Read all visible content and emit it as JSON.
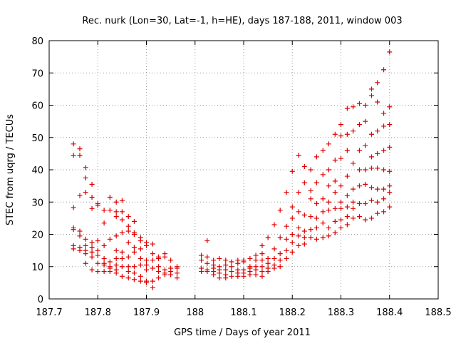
{
  "chart_data": {
    "type": "scatter",
    "title": "Rec. nurk (Lon=30, Lat=-1, h=HE), days 187-188, 2011, window 003",
    "xlabel": "GPS time / Days of year 2011",
    "ylabel": "STEC from uqrg / TECUs",
    "xlim": [
      187.7,
      188.5
    ],
    "ylim": [
      0,
      80
    ],
    "xticks": [
      "187.7",
      "187.8",
      "187.9",
      "188",
      "188.1",
      "188.2",
      "188.3",
      "188.4",
      "188.5"
    ],
    "yticks": [
      "0",
      "10",
      "20",
      "30",
      "40",
      "50",
      "60",
      "70",
      "80"
    ],
    "grid": true,
    "marker": "+",
    "color": "#dd0000",
    "points": [
      [
        187.75,
        48.0
      ],
      [
        187.75,
        44.5
      ],
      [
        187.75,
        28.3
      ],
      [
        187.75,
        22.0
      ],
      [
        187.75,
        21.5
      ],
      [
        187.75,
        16.5
      ],
      [
        187.75,
        15.5
      ],
      [
        187.763,
        46.5
      ],
      [
        187.763,
        44.5
      ],
      [
        187.763,
        32.0
      ],
      [
        187.763,
        21.0
      ],
      [
        187.763,
        19.5
      ],
      [
        187.763,
        16.0
      ],
      [
        187.763,
        15.0
      ],
      [
        187.775,
        40.7
      ],
      [
        187.775,
        37.5
      ],
      [
        187.775,
        33.0
      ],
      [
        187.775,
        18.5
      ],
      [
        187.775,
        16.5
      ],
      [
        187.775,
        15.0
      ],
      [
        187.775,
        14.0
      ],
      [
        187.775,
        11.0
      ],
      [
        187.788,
        35.5
      ],
      [
        187.788,
        31.5
      ],
      [
        187.788,
        28.0
      ],
      [
        187.788,
        17.5
      ],
      [
        187.788,
        16.0
      ],
      [
        187.788,
        14.5
      ],
      [
        187.788,
        13.0
      ],
      [
        187.788,
        9.0
      ],
      [
        187.8,
        29.5
      ],
      [
        187.8,
        29.0
      ],
      [
        187.8,
        18.0
      ],
      [
        187.8,
        15.0
      ],
      [
        187.8,
        13.5
      ],
      [
        187.8,
        11.0
      ],
      [
        187.8,
        8.5
      ],
      [
        187.813,
        27.5
      ],
      [
        187.813,
        23.5
      ],
      [
        187.813,
        16.5
      ],
      [
        187.813,
        12.5
      ],
      [
        187.813,
        11.0
      ],
      [
        187.813,
        10.5
      ],
      [
        187.813,
        8.5
      ],
      [
        187.825,
        31.5
      ],
      [
        187.825,
        27.5
      ],
      [
        187.825,
        18.5
      ],
      [
        187.825,
        11.5
      ],
      [
        187.825,
        10.0
      ],
      [
        187.825,
        9.5
      ],
      [
        187.825,
        8.5
      ],
      [
        187.838,
        30.0
      ],
      [
        187.838,
        27.0
      ],
      [
        187.838,
        25.5
      ],
      [
        187.838,
        19.5
      ],
      [
        187.838,
        15.0
      ],
      [
        187.838,
        12.5
      ],
      [
        187.838,
        10.5
      ],
      [
        187.838,
        9.0
      ],
      [
        187.838,
        8.0
      ],
      [
        187.85,
        30.5
      ],
      [
        187.85,
        27.0
      ],
      [
        187.85,
        24.5
      ],
      [
        187.85,
        20.5
      ],
      [
        187.85,
        14.5
      ],
      [
        187.85,
        12.5
      ],
      [
        187.85,
        10.0
      ],
      [
        187.85,
        7.0
      ],
      [
        187.863,
        25.5
      ],
      [
        187.863,
        22.5
      ],
      [
        187.863,
        21.0
      ],
      [
        187.863,
        17.5
      ],
      [
        187.863,
        13.0
      ],
      [
        187.863,
        10.0
      ],
      [
        187.863,
        8.5
      ],
      [
        187.863,
        6.5
      ],
      [
        187.875,
        24.0
      ],
      [
        187.875,
        20.5
      ],
      [
        187.875,
        20.0
      ],
      [
        187.875,
        16.0
      ],
      [
        187.875,
        14.5
      ],
      [
        187.875,
        10.0
      ],
      [
        187.875,
        8.0
      ],
      [
        187.875,
        6.0
      ],
      [
        187.888,
        19.0
      ],
      [
        187.888,
        18.0
      ],
      [
        187.888,
        15.5
      ],
      [
        187.888,
        12.5
      ],
      [
        187.888,
        10.5
      ],
      [
        187.888,
        7.0
      ],
      [
        187.888,
        5.5
      ],
      [
        187.9,
        17.5
      ],
      [
        187.9,
        16.5
      ],
      [
        187.9,
        12.0
      ],
      [
        187.9,
        10.5
      ],
      [
        187.9,
        9.0
      ],
      [
        187.9,
        5.5
      ],
      [
        187.9,
        5.0
      ],
      [
        187.913,
        17.0
      ],
      [
        187.913,
        14.0
      ],
      [
        187.913,
        12.0
      ],
      [
        187.913,
        9.5
      ],
      [
        187.913,
        5.5
      ],
      [
        187.913,
        3.5
      ],
      [
        187.925,
        13.0
      ],
      [
        187.925,
        12.5
      ],
      [
        187.925,
        10.0
      ],
      [
        187.925,
        8.5
      ],
      [
        187.925,
        6.5
      ],
      [
        187.938,
        14.0
      ],
      [
        187.938,
        13.0
      ],
      [
        187.938,
        9.0
      ],
      [
        187.938,
        8.0
      ],
      [
        187.938,
        7.5
      ],
      [
        187.95,
        12.0
      ],
      [
        187.95,
        9.5
      ],
      [
        187.95,
        8.5
      ],
      [
        187.95,
        7.5
      ],
      [
        187.963,
        10.0
      ],
      [
        187.963,
        9.5
      ],
      [
        187.963,
        8.0
      ],
      [
        187.963,
        6.5
      ],
      [
        188.013,
        13.5
      ],
      [
        188.013,
        12.0
      ],
      [
        188.013,
        9.5
      ],
      [
        188.013,
        8.5
      ],
      [
        188.025,
        18.0
      ],
      [
        188.025,
        13.0
      ],
      [
        188.025,
        11.0
      ],
      [
        188.025,
        9.0
      ],
      [
        188.025,
        8.5
      ],
      [
        188.038,
        12.0
      ],
      [
        188.038,
        10.5
      ],
      [
        188.038,
        9.5
      ],
      [
        188.038,
        8.5
      ],
      [
        188.038,
        7.5
      ],
      [
        188.05,
        12.5
      ],
      [
        188.05,
        10.0
      ],
      [
        188.05,
        9.0
      ],
      [
        188.05,
        8.0
      ],
      [
        188.05,
        6.5
      ],
      [
        188.063,
        12.0
      ],
      [
        188.063,
        10.5
      ],
      [
        188.063,
        9.0
      ],
      [
        188.063,
        7.5
      ],
      [
        188.063,
        6.5
      ],
      [
        188.075,
        11.5
      ],
      [
        188.075,
        10.0
      ],
      [
        188.075,
        8.5
      ],
      [
        188.075,
        7.0
      ],
      [
        188.088,
        12.0
      ],
      [
        188.088,
        11.0
      ],
      [
        188.088,
        9.0
      ],
      [
        188.088,
        8.0
      ],
      [
        188.088,
        7.0
      ],
      [
        188.1,
        12.0
      ],
      [
        188.1,
        11.5
      ],
      [
        188.1,
        9.0
      ],
      [
        188.1,
        8.0
      ],
      [
        188.1,
        7.0
      ],
      [
        188.113,
        12.5
      ],
      [
        188.113,
        10.0
      ],
      [
        188.113,
        9.5
      ],
      [
        188.113,
        8.5
      ],
      [
        188.113,
        7.5
      ],
      [
        188.125,
        13.5
      ],
      [
        188.125,
        12.0
      ],
      [
        188.125,
        10.0
      ],
      [
        188.125,
        9.0
      ],
      [
        188.125,
        7.5
      ],
      [
        188.138,
        16.5
      ],
      [
        188.138,
        14.0
      ],
      [
        188.138,
        12.0
      ],
      [
        188.138,
        10.0
      ],
      [
        188.138,
        8.5
      ],
      [
        188.138,
        7.0
      ],
      [
        188.15,
        19.0
      ],
      [
        188.15,
        12.5
      ],
      [
        188.15,
        11.0
      ],
      [
        188.15,
        9.5
      ],
      [
        188.15,
        8.5
      ],
      [
        188.163,
        23.0
      ],
      [
        188.163,
        15.5
      ],
      [
        188.163,
        12.5
      ],
      [
        188.163,
        10.5
      ],
      [
        188.163,
        9.5
      ],
      [
        188.175,
        27.5
      ],
      [
        188.175,
        19.0
      ],
      [
        188.175,
        14.0
      ],
      [
        188.175,
        12.0
      ],
      [
        188.175,
        10.0
      ],
      [
        188.188,
        33.0
      ],
      [
        188.188,
        22.5
      ],
      [
        188.188,
        18.5
      ],
      [
        188.188,
        15.0
      ],
      [
        188.188,
        12.5
      ],
      [
        188.2,
        39.5
      ],
      [
        188.2,
        28.5
      ],
      [
        188.2,
        25.0
      ],
      [
        188.2,
        20.0
      ],
      [
        188.2,
        17.5
      ],
      [
        188.2,
        14.5
      ],
      [
        188.213,
        44.5
      ],
      [
        188.213,
        33.0
      ],
      [
        188.213,
        27.0
      ],
      [
        188.213,
        22.0
      ],
      [
        188.213,
        19.5
      ],
      [
        188.213,
        16.5
      ],
      [
        188.225,
        41.0
      ],
      [
        188.225,
        36.0
      ],
      [
        188.225,
        26.0
      ],
      [
        188.225,
        21.0
      ],
      [
        188.225,
        19.0
      ],
      [
        188.225,
        17.0
      ],
      [
        188.238,
        40.0
      ],
      [
        188.238,
        33.5
      ],
      [
        188.238,
        31.0
      ],
      [
        188.238,
        25.5
      ],
      [
        188.238,
        21.5
      ],
      [
        188.238,
        19.0
      ],
      [
        188.25,
        44.0
      ],
      [
        188.25,
        36.0
      ],
      [
        188.25,
        29.5
      ],
      [
        188.25,
        25.0
      ],
      [
        188.25,
        22.0
      ],
      [
        188.25,
        18.5
      ],
      [
        188.263,
        46.0
      ],
      [
        188.263,
        38.5
      ],
      [
        188.263,
        31.0
      ],
      [
        188.263,
        27.0
      ],
      [
        188.263,
        23.5
      ],
      [
        188.263,
        19.0
      ],
      [
        188.275,
        48.0
      ],
      [
        188.275,
        40.0
      ],
      [
        188.275,
        35.0
      ],
      [
        188.275,
        30.0
      ],
      [
        188.275,
        27.5
      ],
      [
        188.275,
        22.0
      ],
      [
        188.275,
        19.5
      ],
      [
        188.288,
        51.0
      ],
      [
        188.288,
        43.0
      ],
      [
        188.288,
        36.5
      ],
      [
        188.288,
        33.0
      ],
      [
        188.288,
        28.0
      ],
      [
        188.288,
        24.0
      ],
      [
        188.288,
        20.5
      ],
      [
        188.3,
        54.0
      ],
      [
        188.3,
        50.5
      ],
      [
        188.3,
        43.5
      ],
      [
        188.3,
        35.0
      ],
      [
        188.3,
        30.0
      ],
      [
        188.3,
        28.0
      ],
      [
        188.3,
        24.5
      ],
      [
        188.3,
        22.0
      ],
      [
        188.313,
        59.0
      ],
      [
        188.313,
        51.0
      ],
      [
        188.313,
        46.0
      ],
      [
        188.313,
        38.0
      ],
      [
        188.313,
        32.0
      ],
      [
        188.313,
        28.5
      ],
      [
        188.313,
        25.5
      ],
      [
        188.313,
        23.0
      ],
      [
        188.325,
        59.5
      ],
      [
        188.325,
        52.0
      ],
      [
        188.325,
        42.0
      ],
      [
        188.325,
        34.0
      ],
      [
        188.325,
        30.0
      ],
      [
        188.325,
        28.0
      ],
      [
        188.325,
        25.0
      ],
      [
        188.338,
        60.5
      ],
      [
        188.338,
        54.0
      ],
      [
        188.338,
        46.0
      ],
      [
        188.338,
        40.0
      ],
      [
        188.338,
        35.0
      ],
      [
        188.338,
        29.5
      ],
      [
        188.338,
        25.5
      ],
      [
        188.35,
        60.0
      ],
      [
        188.35,
        55.0
      ],
      [
        188.35,
        47.5
      ],
      [
        188.35,
        40.0
      ],
      [
        188.35,
        35.5
      ],
      [
        188.35,
        29.5
      ],
      [
        188.35,
        24.5
      ],
      [
        188.363,
        65.0
      ],
      [
        188.363,
        63.0
      ],
      [
        188.363,
        51.0
      ],
      [
        188.363,
        44.0
      ],
      [
        188.363,
        40.5
      ],
      [
        188.363,
        34.5
      ],
      [
        188.363,
        30.5
      ],
      [
        188.363,
        25.0
      ],
      [
        188.375,
        67.0
      ],
      [
        188.375,
        61.0
      ],
      [
        188.375,
        52.0
      ],
      [
        188.375,
        45.0
      ],
      [
        188.375,
        40.5
      ],
      [
        188.375,
        34.0
      ],
      [
        188.375,
        30.0
      ],
      [
        188.375,
        26.5
      ],
      [
        188.388,
        71.0
      ],
      [
        188.388,
        57.5
      ],
      [
        188.388,
        53.5
      ],
      [
        188.388,
        46.0
      ],
      [
        188.388,
        40.0
      ],
      [
        188.388,
        34.0
      ],
      [
        188.388,
        31.0
      ],
      [
        188.388,
        27.0
      ],
      [
        188.4,
        76.5
      ],
      [
        188.4,
        59.5
      ],
      [
        188.4,
        54.0
      ],
      [
        188.4,
        47.0
      ],
      [
        188.4,
        39.5
      ],
      [
        188.4,
        35.0
      ],
      [
        188.4,
        33.0
      ],
      [
        188.4,
        28.5
      ]
    ]
  }
}
